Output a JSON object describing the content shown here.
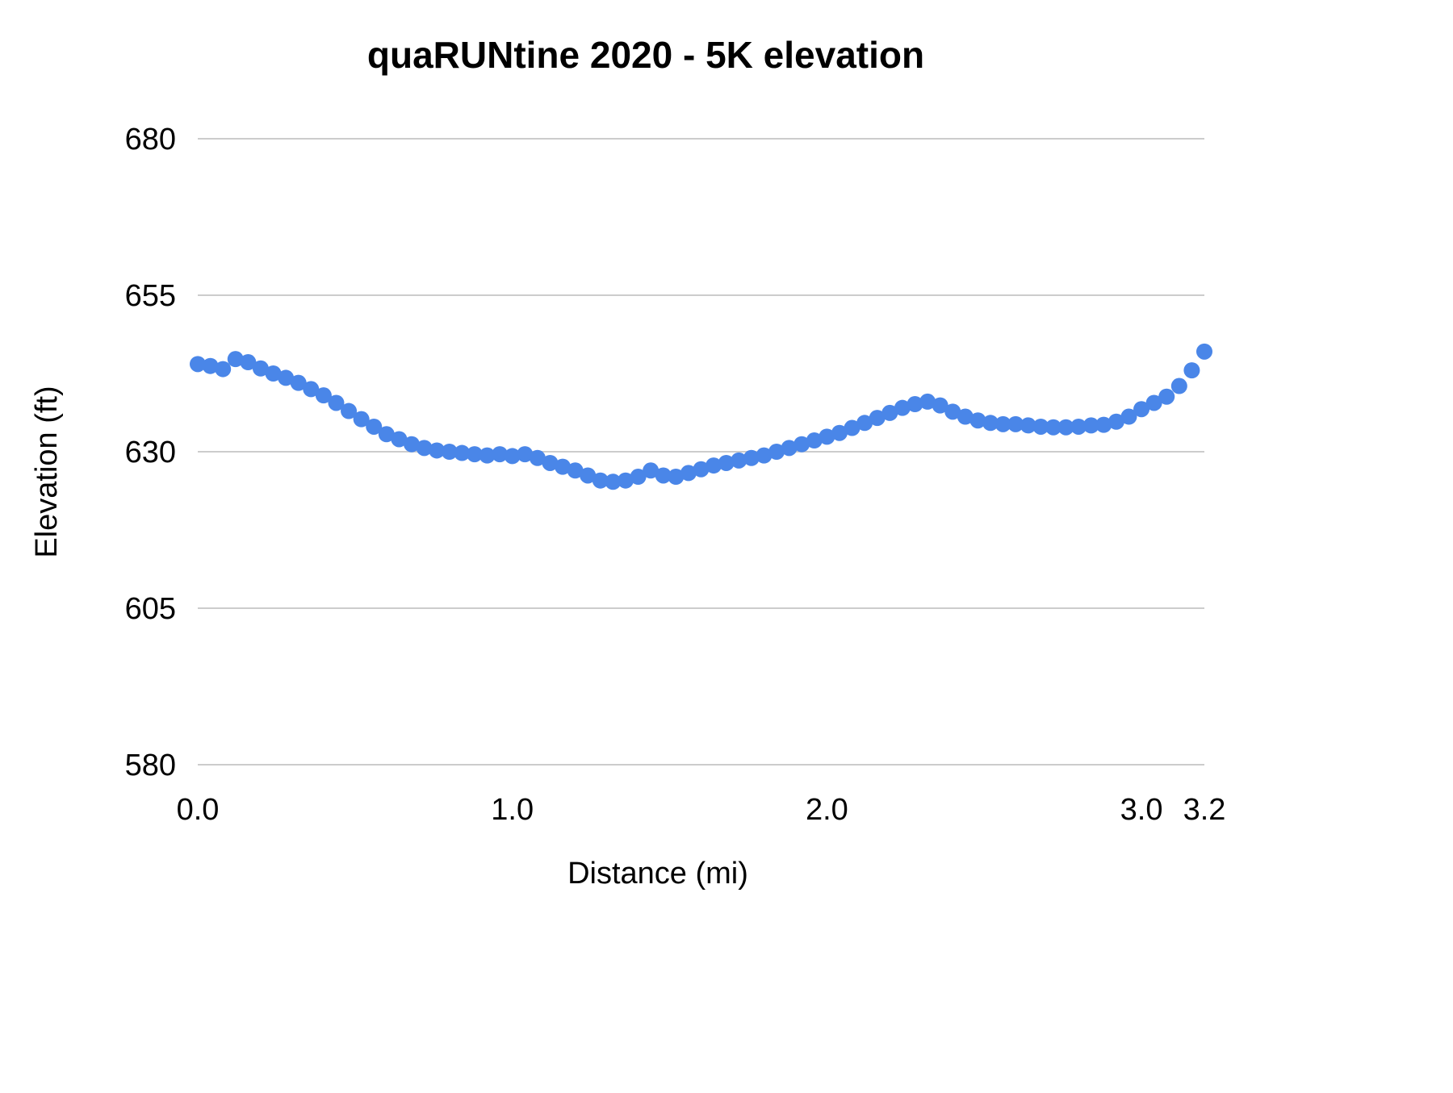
{
  "chart_data": {
    "type": "scatter",
    "title": "quaRUNtine 2020 - 5K elevation",
    "xlabel": "Distance (mi)",
    "ylabel": "Elevation (ft)",
    "xlim": [
      0,
      3.2
    ],
    "ylim": [
      580,
      680
    ],
    "x_ticks": [
      0.0,
      1.0,
      2.0,
      3.0,
      3.2
    ],
    "x_tick_labels": [
      "0.0",
      "1.0",
      "2.0",
      "3.0",
      "3.2"
    ],
    "y_ticks": [
      580,
      605,
      630,
      655,
      680
    ],
    "grid": true,
    "legend": "none",
    "point_color": "#4a86e8",
    "series": [
      {
        "name": "Elevation",
        "x": [
          0.0,
          0.04,
          0.08,
          0.12,
          0.16,
          0.2,
          0.24,
          0.28,
          0.32,
          0.36,
          0.4,
          0.44,
          0.48,
          0.52,
          0.56,
          0.6,
          0.64,
          0.68,
          0.72,
          0.76,
          0.8,
          0.84,
          0.88,
          0.92,
          0.96,
          1.0,
          1.04,
          1.08,
          1.12,
          1.16,
          1.2,
          1.24,
          1.28,
          1.32,
          1.36,
          1.4,
          1.44,
          1.48,
          1.52,
          1.56,
          1.6,
          1.64,
          1.68,
          1.72,
          1.76,
          1.8,
          1.84,
          1.88,
          1.92,
          1.96,
          2.0,
          2.04,
          2.08,
          2.12,
          2.16,
          2.2,
          2.24,
          2.28,
          2.32,
          2.36,
          2.4,
          2.44,
          2.48,
          2.52,
          2.56,
          2.6,
          2.64,
          2.68,
          2.72,
          2.76,
          2.8,
          2.84,
          2.88,
          2.92,
          2.96,
          3.0,
          3.04,
          3.08,
          3.12,
          3.16,
          3.2
        ],
        "y": [
          644.0,
          643.7,
          643.2,
          644.8,
          644.3,
          643.3,
          642.5,
          641.8,
          641.0,
          640.0,
          639.0,
          637.8,
          636.5,
          635.2,
          634.0,
          632.8,
          632.0,
          631.2,
          630.6,
          630.2,
          630.0,
          629.8,
          629.6,
          629.4,
          629.6,
          629.3,
          629.6,
          629.0,
          628.2,
          627.6,
          627.0,
          626.2,
          625.4,
          625.2,
          625.4,
          626.0,
          627.0,
          626.2,
          626.0,
          626.6,
          627.2,
          627.8,
          628.2,
          628.6,
          629.0,
          629.4,
          630.0,
          630.6,
          631.2,
          631.8,
          632.4,
          633.0,
          633.8,
          634.6,
          635.4,
          636.2,
          637.0,
          637.6,
          638.0,
          637.4,
          636.4,
          635.6,
          635.0,
          634.6,
          634.4,
          634.4,
          634.2,
          634.0,
          633.9,
          633.9,
          634.0,
          634.2,
          634.3,
          634.8,
          635.6,
          636.8,
          637.8,
          638.8,
          640.5,
          643.0,
          646.0
        ]
      }
    ]
  }
}
